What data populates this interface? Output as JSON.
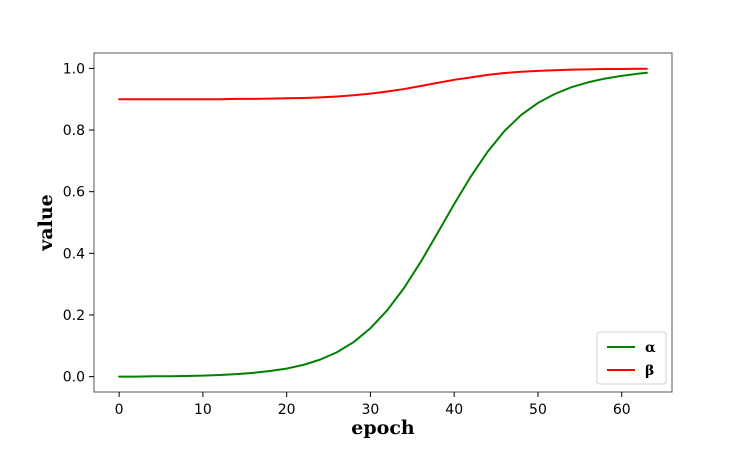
{
  "chart_data": {
    "type": "line",
    "xlabel": "epoch",
    "ylabel": "value",
    "xlim": [
      -3,
      66
    ],
    "ylim": [
      -0.05,
      1.05
    ],
    "xticks": [
      0,
      10,
      20,
      30,
      40,
      50,
      60
    ],
    "yticks": [
      0.0,
      0.2,
      0.4,
      0.6,
      0.8,
      1.0
    ],
    "ytick_labels": [
      "0.0",
      "0.2",
      "0.4",
      "0.6",
      "0.8",
      "1.0"
    ],
    "grid": false,
    "legend_position": "bottom-right",
    "x": [
      0,
      2,
      4,
      6,
      8,
      10,
      12,
      14,
      16,
      18,
      20,
      22,
      24,
      26,
      28,
      30,
      32,
      34,
      36,
      38,
      40,
      42,
      44,
      46,
      48,
      50,
      52,
      54,
      56,
      58,
      60,
      62,
      63
    ],
    "series": [
      {
        "name": "α",
        "color": "#008000",
        "values": [
          0.0,
          0.0,
          0.001,
          0.001,
          0.002,
          0.003,
          0.005,
          0.008,
          0.012,
          0.018,
          0.026,
          0.038,
          0.055,
          0.079,
          0.112,
          0.157,
          0.215,
          0.287,
          0.372,
          0.465,
          0.56,
          0.65,
          0.73,
          0.797,
          0.849,
          0.888,
          0.917,
          0.939,
          0.955,
          0.967,
          0.976,
          0.983,
          0.986
        ]
      },
      {
        "name": "β",
        "color": "#ff0000",
        "values": [
          0.9,
          0.9,
          0.9,
          0.9,
          0.9,
          0.9,
          0.9,
          0.901,
          0.901,
          0.902,
          0.903,
          0.904,
          0.906,
          0.909,
          0.913,
          0.918,
          0.925,
          0.933,
          0.943,
          0.953,
          0.963,
          0.971,
          0.979,
          0.985,
          0.989,
          0.992,
          0.994,
          0.996,
          0.997,
          0.998,
          0.998,
          0.999,
          0.999
        ]
      }
    ]
  }
}
